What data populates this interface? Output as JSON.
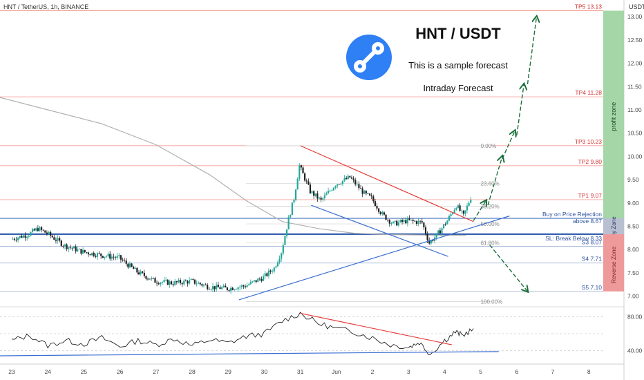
{
  "header": {
    "symbol_line": "HNT / TetherUS, 1h, BINANCE",
    "axis_unit": "USDT"
  },
  "overlay": {
    "title": "HNT / USDT",
    "subtitle": "This is a sample forecast",
    "note": "Intraday Forecast"
  },
  "zones": {
    "profit": "profit zone",
    "buy": "Buy Zone",
    "reverse": "Reverse Zone"
  },
  "colors": {
    "up_candle": "#26a69a",
    "down_candle": "#222222",
    "target_line": "#f28b82",
    "support_line": "#9fb4d6",
    "trend_red": "#e53935",
    "trend_blue": "#3d6fd1",
    "forecast_arrow": "#1b6e3a",
    "profit_zone": "#a5d6a7",
    "buy_zone": "#b8bfd0",
    "reverse_zone": "#ef9a9a",
    "logo": "#2f7ff5"
  },
  "chart_data": {
    "type": "candlestick",
    "ylim": [
      6.8,
      13.3
    ],
    "y_ticks": [
      "13.00",
      "12.50",
      "12.00",
      "11.50",
      "11.00",
      "10.50",
      "10.00",
      "9.50",
      "9.00",
      "8.50",
      "8.00",
      "7.50",
      "7.00"
    ],
    "x_ticks": [
      "23",
      "24",
      "25",
      "26",
      "27",
      "28",
      "29",
      "30",
      "31",
      "Jun",
      "2",
      "3",
      "4",
      "5",
      "6",
      "7",
      "8"
    ],
    "price_series": [
      {
        "t": 0.0,
        "v": 8.22
      },
      {
        "t": 0.5,
        "v": 8.33
      },
      {
        "t": 0.75,
        "v": 8.45
      },
      {
        "t": 1.0,
        "v": 8.35
      },
      {
        "t": 1.5,
        "v": 8.08
      },
      {
        "t": 2.0,
        "v": 7.95
      },
      {
        "t": 2.5,
        "v": 7.88
      },
      {
        "t": 3.0,
        "v": 7.82
      },
      {
        "t": 3.5,
        "v": 7.52
      },
      {
        "t": 4.0,
        "v": 7.32
      },
      {
        "t": 4.5,
        "v": 7.28
      },
      {
        "t": 5.0,
        "v": 7.32
      },
      {
        "t": 5.5,
        "v": 7.2
      },
      {
        "t": 6.0,
        "v": 7.16
      },
      {
        "t": 6.5,
        "v": 7.22
      },
      {
        "t": 7.0,
        "v": 7.4
      },
      {
        "t": 7.3,
        "v": 7.6
      },
      {
        "t": 7.5,
        "v": 7.95
      },
      {
        "t": 7.7,
        "v": 8.65
      },
      {
        "t": 7.85,
        "v": 9.1
      },
      {
        "t": 8.0,
        "v": 9.8
      },
      {
        "t": 8.3,
        "v": 9.25
      },
      {
        "t": 8.6,
        "v": 9.05
      },
      {
        "t": 9.0,
        "v": 9.4
      },
      {
        "t": 9.4,
        "v": 9.55
      },
      {
        "t": 9.8,
        "v": 9.2
      },
      {
        "t": 10.0,
        "v": 9.1
      },
      {
        "t": 10.3,
        "v": 8.75
      },
      {
        "t": 10.6,
        "v": 8.55
      },
      {
        "t": 11.0,
        "v": 8.62
      },
      {
        "t": 11.4,
        "v": 8.58
      },
      {
        "t": 11.6,
        "v": 8.14
      },
      {
        "t": 11.8,
        "v": 8.3
      },
      {
        "t": 12.1,
        "v": 8.62
      },
      {
        "t": 12.35,
        "v": 8.95
      },
      {
        "t": 12.55,
        "v": 8.72
      },
      {
        "t": 12.75,
        "v": 9.12
      }
    ],
    "ma_series": [
      {
        "t": -0.5,
        "v": 11.3
      },
      {
        "t": 1.0,
        "v": 11.0
      },
      {
        "t": 2.5,
        "v": 10.7
      },
      {
        "t": 4.0,
        "v": 10.25
      },
      {
        "t": 5.5,
        "v": 9.6
      },
      {
        "t": 6.5,
        "v": 9.05
      },
      {
        "t": 7.5,
        "v": 8.6
      },
      {
        "t": 8.5,
        "v": 8.45
      },
      {
        "t": 9.5,
        "v": 8.35
      },
      {
        "t": 10.5,
        "v": 8.32
      },
      {
        "t": 11.5,
        "v": 8.31
      },
      {
        "t": 12.6,
        "v": 8.3
      }
    ],
    "target_levels": [
      {
        "label": "TP5 13.13",
        "value": 13.13
      },
      {
        "label": "TP4 11.28",
        "value": 11.28
      },
      {
        "label": "TP3 10.23",
        "value": 10.23
      },
      {
        "label": "TP2 9.80",
        "value": 9.8
      },
      {
        "label": "TP1 9.07",
        "value": 9.07
      }
    ],
    "support_levels": [
      {
        "label": "S3 8.07",
        "value": 8.07
      },
      {
        "label": "S4 7.71",
        "value": 7.71
      },
      {
        "label": "S5 7.10",
        "value": 7.1
      }
    ],
    "buy_level": {
      "label_line1": "Buy on Price Rejection",
      "label_line2": "above 8.67",
      "value": 8.67
    },
    "stop_level": {
      "label": "SL: Break Below 8.33",
      "value": 8.33
    },
    "fib_levels": [
      {
        "label": "0.00%",
        "value": 10.23
      },
      {
        "label": "23.60%",
        "value": 9.42
      },
      {
        "label": "38.20%",
        "value": 8.93
      },
      {
        "label": "50.00%",
        "value": 8.55
      },
      {
        "label": "61.80%",
        "value": 8.14
      },
      {
        "label": "100.00%",
        "value": 6.88
      }
    ],
    "trendlines": [
      {
        "color": "red",
        "from": [
          8.0,
          10.23
        ],
        "to": [
          12.8,
          8.6
        ]
      },
      {
        "color": "blue",
        "from": [
          8.3,
          8.95
        ],
        "to": [
          12.1,
          7.85
        ]
      },
      {
        "color": "blue",
        "from": [
          6.3,
          6.92
        ],
        "to": [
          13.8,
          8.72
        ]
      }
    ],
    "forecast_path": [
      {
        "from": [
          12.8,
          8.62
        ],
        "to": [
          13.15,
          9.05
        ]
      },
      {
        "from": [
          13.2,
          8.95
        ],
        "to": [
          13.6,
          10.0
        ]
      },
      {
        "from": [
          13.6,
          9.95
        ],
        "to": [
          13.95,
          10.55
        ]
      },
      {
        "from": [
          14.0,
          10.45
        ],
        "to": [
          14.2,
          11.55
        ]
      },
      {
        "from": [
          14.3,
          11.55
        ],
        "to": [
          14.55,
          13.0
        ]
      },
      {
        "from": [
          13.25,
          8.1
        ],
        "to": [
          14.3,
          7.1
        ]
      }
    ],
    "oscillator": {
      "ylim": [
        30,
        90
      ],
      "ticks": [
        "80.00",
        "40.00"
      ],
      "series": [
        {
          "t": 0.0,
          "v": 52
        },
        {
          "t": 0.5,
          "v": 58
        },
        {
          "t": 1.0,
          "v": 46
        },
        {
          "t": 1.5,
          "v": 52
        },
        {
          "t": 2.0,
          "v": 48
        },
        {
          "t": 2.5,
          "v": 55
        },
        {
          "t": 3.0,
          "v": 45
        },
        {
          "t": 3.5,
          "v": 52
        },
        {
          "t": 4.0,
          "v": 47
        },
        {
          "t": 4.5,
          "v": 54
        },
        {
          "t": 5.0,
          "v": 46
        },
        {
          "t": 5.5,
          "v": 53
        },
        {
          "t": 6.0,
          "v": 49
        },
        {
          "t": 6.5,
          "v": 57
        },
        {
          "t": 7.0,
          "v": 60
        },
        {
          "t": 7.5,
          "v": 75
        },
        {
          "t": 8.0,
          "v": 84
        },
        {
          "t": 8.5,
          "v": 72
        },
        {
          "t": 9.0,
          "v": 66
        },
        {
          "t": 9.5,
          "v": 62
        },
        {
          "t": 10.0,
          "v": 55
        },
        {
          "t": 10.5,
          "v": 47
        },
        {
          "t": 11.0,
          "v": 44
        },
        {
          "t": 11.3,
          "v": 50
        },
        {
          "t": 11.6,
          "v": 36
        },
        {
          "t": 12.0,
          "v": 52
        },
        {
          "t": 12.3,
          "v": 62
        },
        {
          "t": 12.5,
          "v": 58
        },
        {
          "t": 12.8,
          "v": 66
        }
      ],
      "trendlines": [
        {
          "color": "red",
          "from": [
            8.0,
            84
          ],
          "to": [
            12.2,
            47
          ]
        },
        {
          "color": "blue",
          "from": [
            -0.5,
            34
          ],
          "to": [
            13.5,
            39
          ]
        }
      ]
    }
  }
}
